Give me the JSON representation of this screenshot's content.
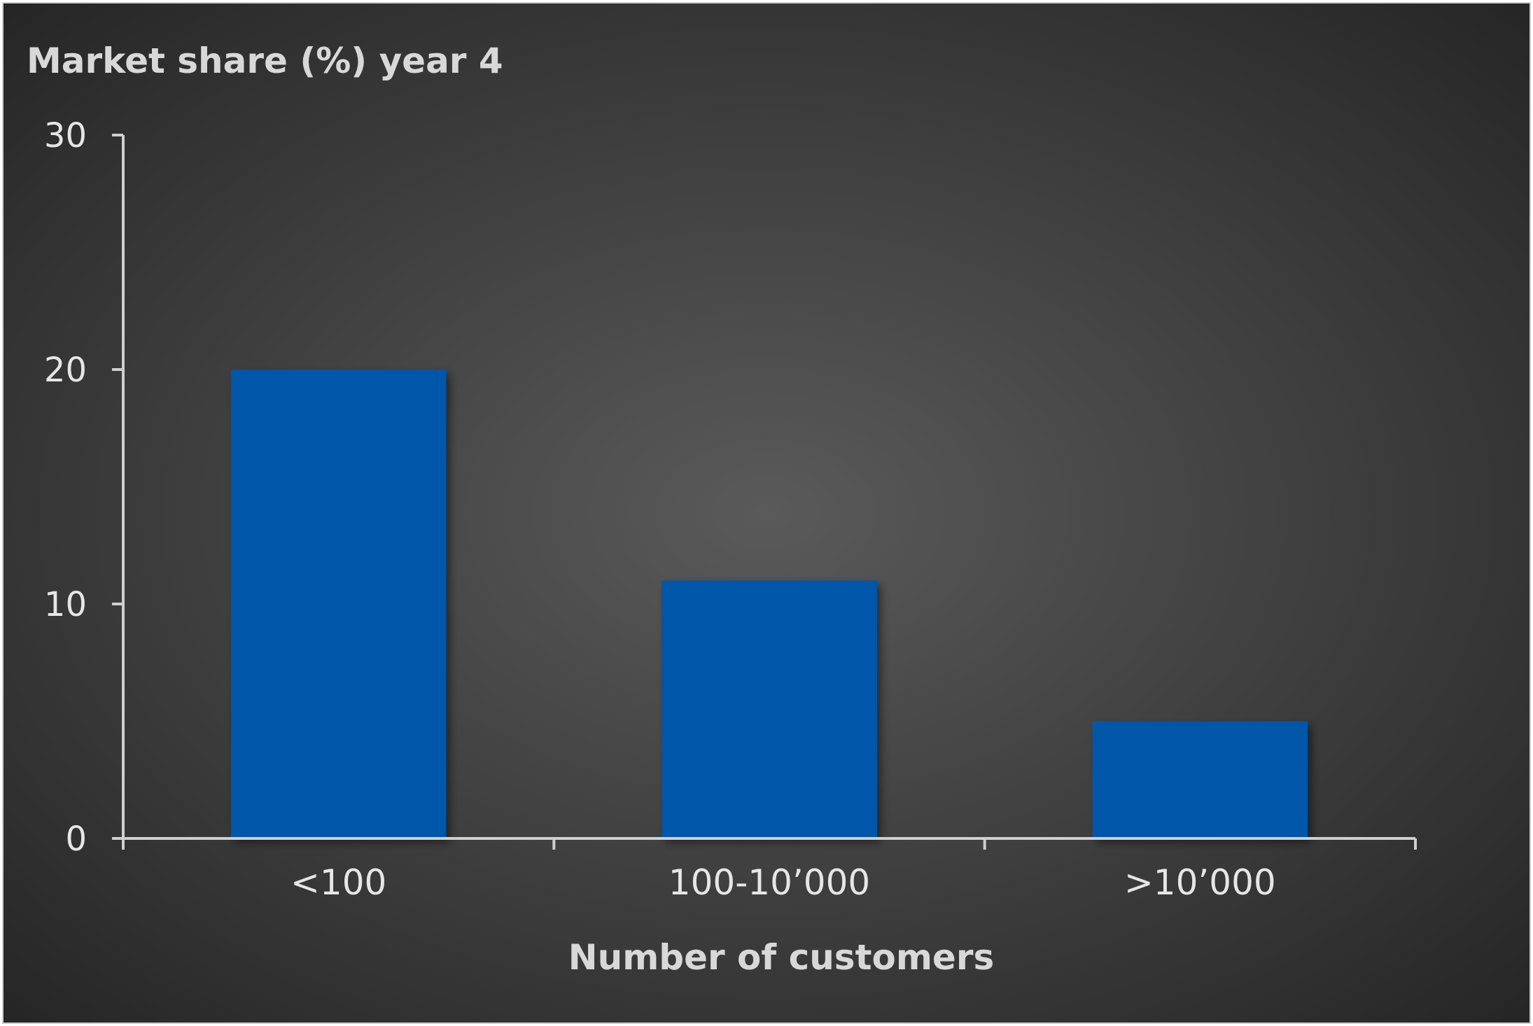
{
  "chart_data": {
    "type": "bar",
    "title": "Market share (%) year 4",
    "xlabel": "Number of customers",
    "ylabel": "",
    "categories": [
      "<100",
      "100-10’000",
      ">10’000"
    ],
    "values": [
      20,
      11,
      5
    ],
    "ylim": [
      0,
      30
    ],
    "yticks": [
      "0",
      "10",
      "20",
      "30"
    ],
    "grid": false,
    "legend": "none"
  },
  "colors": {
    "background_center": "#5a5a5a",
    "background_edge": "#262626",
    "bar": "#0057a8",
    "axis": "#cfcfcf",
    "text": "#e6e6e6"
  }
}
